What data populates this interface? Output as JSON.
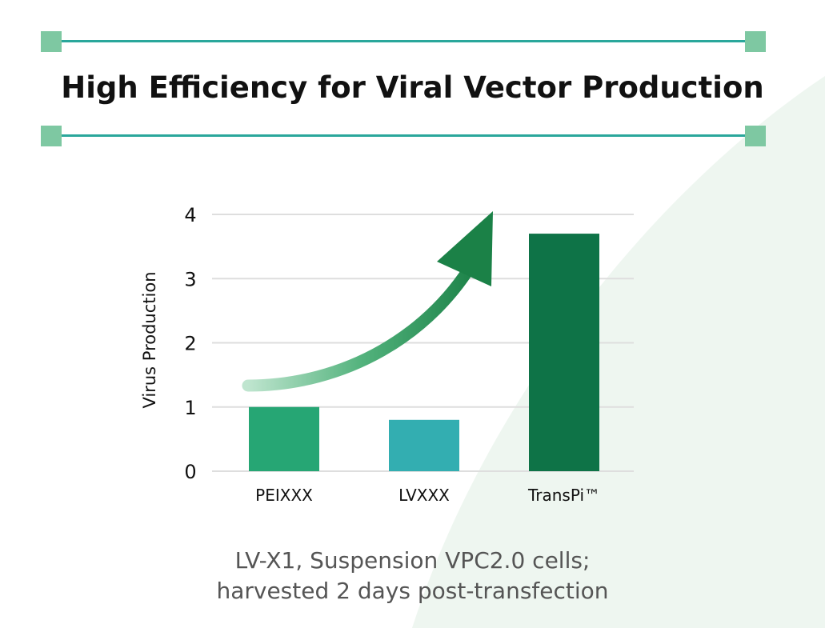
{
  "header": {
    "title": "High Efficiency for Viral Vector Production"
  },
  "caption": {
    "line1": "LV-X1, Suspension VPC2.0 cells;",
    "line2": "harvested 2 days post-transfection"
  },
  "colors": {
    "rule": "#2aa79b",
    "corner_square": "#7ec8a2",
    "background_shape": "#eef6f0",
    "arrow": "#1f8a52"
  },
  "icons": {
    "trend": "up-arrow-icon"
  },
  "chart_data": {
    "type": "bar",
    "categories": [
      "PEIXXX",
      "LVXXX",
      "TransPi™"
    ],
    "values": [
      1.0,
      0.8,
      3.7
    ],
    "bar_colors": [
      "#26a674",
      "#33aeb1",
      "#0e7347"
    ],
    "ylabel": "Virus Production",
    "ylim": [
      0,
      4
    ],
    "yticks": [
      "0",
      "1",
      "2",
      "3",
      "4"
    ],
    "grid": true,
    "legend": "none"
  }
}
